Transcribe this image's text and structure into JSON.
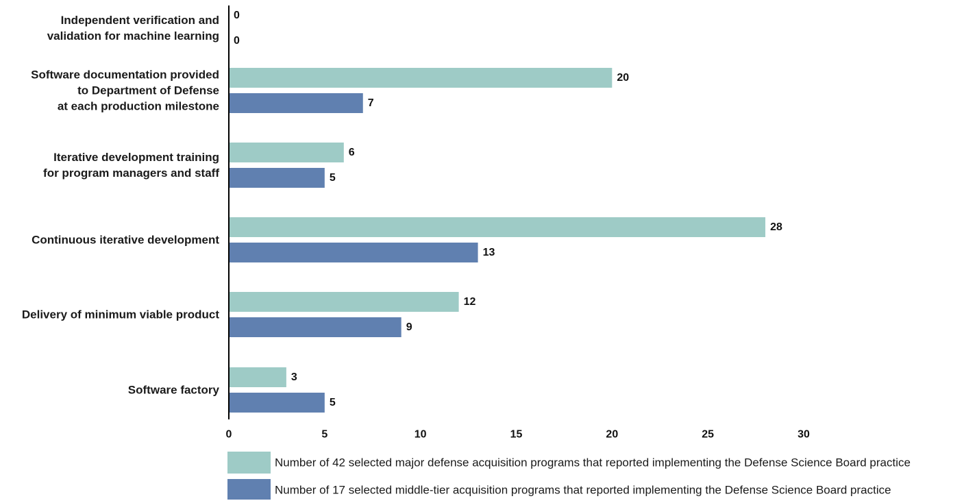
{
  "chart_data": {
    "type": "bar",
    "orientation": "horizontal",
    "categories": [
      [
        "Independent verification and",
        "validation for machine learning"
      ],
      [
        "Software documentation provided",
        "to Department of Defense",
        "at each production milestone"
      ],
      [
        "Iterative development training",
        "for program managers and staff"
      ],
      [
        "Continuous iterative development"
      ],
      [
        "Delivery of minimum viable product"
      ],
      [
        "Software factory"
      ]
    ],
    "series": [
      {
        "name": "Number of 42 selected major defense acquisition programs that reported implementing the Defense Science Board practice",
        "color": "#9ecbc6",
        "values": [
          0,
          20,
          6,
          28,
          12,
          3
        ]
      },
      {
        "name": "Number of 17 selected middle-tier acquisition programs that reported implementing the Defense Science Board practice",
        "color": "#6080b0",
        "values": [
          0,
          7,
          5,
          13,
          9,
          5
        ]
      }
    ],
    "xlim": [
      0,
      30
    ],
    "xticks": [
      "0",
      "5",
      "10",
      "15",
      "20",
      "25",
      "30"
    ],
    "grid": false,
    "legend": "bottom",
    "data_labels": true
  }
}
